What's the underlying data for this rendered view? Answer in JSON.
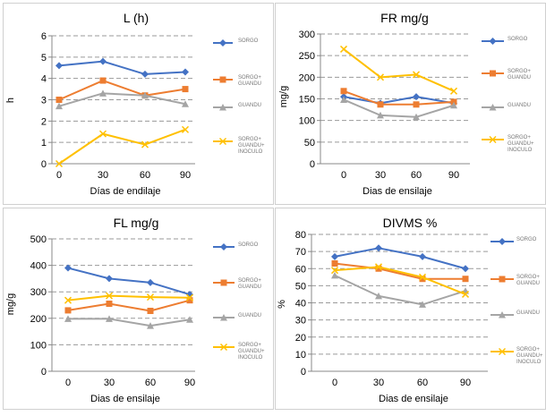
{
  "colors": {
    "blue": "#4472C4",
    "orange": "#ED7D31",
    "gray": "#A5A5A5",
    "yellow": "#FFC000"
  },
  "chart_data": [
    {
      "type": "line",
      "title": "L (h)",
      "xlabel": "Días de endilaje",
      "ylabel": "h",
      "categories": [
        "0",
        "30",
        "60",
        "90"
      ],
      "ylim": [
        0,
        6
      ],
      "yticks": [
        "0",
        "1",
        "2",
        "3",
        "4",
        "5",
        "6"
      ],
      "grid": "dashed",
      "legend": "right",
      "series": [
        {
          "name": "SORGO",
          "color": "#4472C4",
          "marker": "diamond",
          "values": [
            4.6,
            4.8,
            4.2,
            4.3
          ]
        },
        {
          "name": "SORGO+ GUANDU",
          "color": "#ED7D31",
          "marker": "square",
          "values": [
            3.0,
            3.9,
            3.2,
            3.5
          ]
        },
        {
          "name": "GUANDU",
          "color": "#A5A5A5",
          "marker": "triangle",
          "values": [
            2.7,
            3.3,
            3.2,
            2.8
          ]
        },
        {
          "name": "SORGO+ GUANDU+ INOCULO",
          "color": "#FFC000",
          "marker": "x",
          "values": [
            0.0,
            1.4,
            0.9,
            1.6
          ]
        }
      ]
    },
    {
      "type": "line",
      "title": "FR mg/g",
      "xlabel": "Dias de ensilaje",
      "ylabel": "mg/g",
      "categories": [
        "0",
        "30",
        "60",
        "90"
      ],
      "ylim": [
        0,
        300
      ],
      "yticks": [
        "0",
        "50",
        "100",
        "150",
        "200",
        "250",
        "300"
      ],
      "grid": "dashed",
      "legend": "right",
      "series": [
        {
          "name": "SORGO",
          "color": "#4472C4",
          "marker": "diamond",
          "values": [
            155,
            140,
            155,
            140
          ]
        },
        {
          "name": "SORGO+ GUANDU",
          "color": "#ED7D31",
          "marker": "square",
          "values": [
            168,
            137,
            137,
            143
          ]
        },
        {
          "name": "GUANDU",
          "color": "#A5A5A5",
          "marker": "triangle",
          "values": [
            148,
            112,
            108,
            135
          ]
        },
        {
          "name": "SORGO+ GUANDU+ INOCULO",
          "color": "#FFC000",
          "marker": "x",
          "values": [
            265,
            200,
            206,
            168
          ]
        }
      ]
    },
    {
      "type": "line",
      "title": "FL mg/g",
      "xlabel": "Dias de ensilaje",
      "ylabel": "mg/g",
      "categories": [
        "0",
        "30",
        "60",
        "90"
      ],
      "ylim": [
        0,
        500
      ],
      "yticks": [
        "0",
        "100",
        "200",
        "300",
        "400",
        "500"
      ],
      "grid": "dashed",
      "legend": "right",
      "series": [
        {
          "name": "SORGO",
          "color": "#4472C4",
          "marker": "diamond",
          "values": [
            390,
            350,
            335,
            290
          ]
        },
        {
          "name": "SORGO+ GUANDU",
          "color": "#ED7D31",
          "marker": "square",
          "values": [
            230,
            255,
            228,
            268
          ]
        },
        {
          "name": "GUANDU",
          "color": "#A5A5A5",
          "marker": "triangle",
          "values": [
            198,
            198,
            172,
            195
          ]
        },
        {
          "name": "SORGO+ GUANDU+ INOCULO",
          "color": "#FFC000",
          "marker": "x",
          "values": [
            268,
            285,
            280,
            278
          ]
        }
      ]
    },
    {
      "type": "line",
      "title": "DIVMS %",
      "xlabel": "Dias de ensilaje",
      "ylabel": "%",
      "categories": [
        "0",
        "30",
        "60",
        "90"
      ],
      "ylim": [
        0,
        80
      ],
      "yticks": [
        "0",
        "10",
        "20",
        "30",
        "40",
        "50",
        "60",
        "70",
        "80"
      ],
      "grid": "dashed",
      "legend": "right",
      "series": [
        {
          "name": "SORGO",
          "color": "#4472C4",
          "marker": "diamond",
          "values": [
            67,
            72,
            67,
            60
          ]
        },
        {
          "name": "SORGO+ GUANDU",
          "color": "#ED7D31",
          "marker": "square",
          "values": [
            63,
            60,
            54,
            54
          ]
        },
        {
          "name": "GUANDU",
          "color": "#A5A5A5",
          "marker": "triangle",
          "values": [
            56,
            44,
            39,
            47
          ]
        },
        {
          "name": "SORGO+ GUANDU+ INOCULO",
          "color": "#FFC000",
          "marker": "x",
          "values": [
            59,
            61,
            55,
            45
          ]
        }
      ]
    }
  ]
}
